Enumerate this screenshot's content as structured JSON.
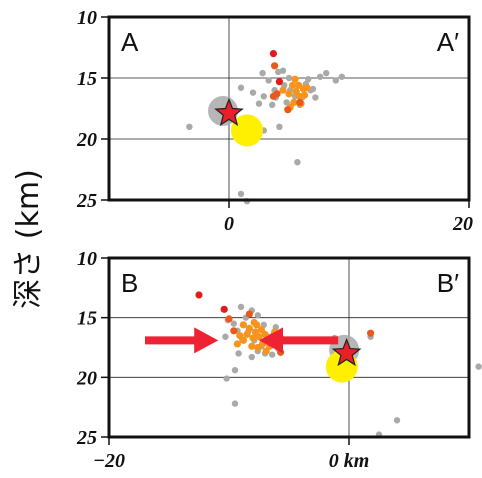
{
  "ylabel": "深さ (km)",
  "colors": {
    "grey": "#a9a9a9",
    "orange": "#f7941d",
    "dark_orange": "#e8591a",
    "red": "#e21b1b",
    "yellow": "#ffef00",
    "star": "#e8202a",
    "arrow": "#ee2233"
  },
  "chart_data": [
    {
      "type": "scatter",
      "panel": "A",
      "left_label": "A",
      "right_label": "A′",
      "xlim": [
        -10,
        20
      ],
      "ylim": [
        25,
        10
      ],
      "x_ticks": [
        0,
        20
      ],
      "x_tick_labels": [
        "0",
        "20"
      ],
      "y_ticks": [
        10,
        15,
        20,
        25
      ],
      "y_tick_labels": [
        "10",
        "15",
        "20",
        "25"
      ],
      "grid": true,
      "series": [
        {
          "color": "grey",
          "points": [
            [
              1,
              15.8
            ],
            [
              2,
              16.2
            ],
            [
              2.5,
              17.1
            ],
            [
              2.9,
              16.5
            ],
            [
              3.3,
              15.2
            ],
            [
              3.6,
              17.2
            ],
            [
              3.9,
              16.6
            ],
            [
              4.1,
              14.5
            ],
            [
              4.5,
              14.4
            ],
            [
              4.6,
              15.6
            ],
            [
              5.0,
              15.0
            ],
            [
              5.1,
              16.0
            ],
            [
              5.5,
              16.5
            ],
            [
              5.9,
              17.2
            ],
            [
              6.1,
              16.6
            ],
            [
              6.4,
              15.5
            ],
            [
              6.8,
              16.0
            ],
            [
              7.2,
              16.6
            ],
            [
              7.6,
              14.9
            ],
            [
              8.1,
              14.6
            ],
            [
              8.9,
              15.2
            ],
            [
              9.4,
              14.9
            ],
            [
              4.2,
              19.0
            ],
            [
              2.9,
              19.3
            ],
            [
              5.7,
              21.9
            ],
            [
              3.8,
              16.0
            ],
            [
              6.6,
              15.1
            ],
            [
              7.0,
              15.9
            ],
            [
              -3.3,
              19.0
            ],
            [
              1.0,
              24.5
            ],
            [
              1.5,
              25.1
            ],
            [
              2.8,
              14.6
            ],
            [
              4.8,
              17.0
            ]
          ]
        },
        {
          "color": "orange",
          "points": [
            [
              5.0,
              16.3
            ],
            [
              5.3,
              15.6
            ],
            [
              5.6,
              16.1
            ],
            [
              5.9,
              16.5
            ],
            [
              5.4,
              17.0
            ],
            [
              6.2,
              15.9
            ],
            [
              5.8,
              15.6
            ],
            [
              6.3,
              16.4
            ],
            [
              5.1,
              17.4
            ],
            [
              6.0,
              17.1
            ],
            [
              4.5,
              16.0
            ],
            [
              5.5,
              15.1
            ],
            [
              6.5,
              15.8
            ]
          ]
        },
        {
          "color": "dark_orange",
          "points": [
            [
              5.9,
              17.0
            ],
            [
              4.0,
              16.3
            ],
            [
              3.7,
              16.5
            ],
            [
              4.9,
              17.6
            ],
            [
              3.8,
              14.0
            ]
          ]
        },
        {
          "color": "red",
          "points": [
            [
              3.7,
              13.0
            ],
            [
              4.2,
              15.3
            ]
          ]
        }
      ],
      "large_circles": [
        {
          "color": "grey",
          "x": -0.5,
          "y": 17.7
        },
        {
          "color": "yellow",
          "x": 1.5,
          "y": 19.3
        }
      ],
      "star": {
        "x": 0,
        "y": 17.9
      }
    },
    {
      "type": "scatter",
      "panel": "B",
      "left_label": "B",
      "right_label": "B′",
      "xlim": [
        -20,
        10
      ],
      "ylim": [
        25,
        10
      ],
      "x_ticks": [
        -20,
        0
      ],
      "x_tick_labels": [
        "−20",
        "0 km"
      ],
      "y_ticks": [
        10,
        15,
        20,
        25
      ],
      "y_tick_labels": [
        "10",
        "15",
        "20",
        "25"
      ],
      "grid": true,
      "series": [
        {
          "color": "grey",
          "points": [
            [
              -9.0,
              14.1
            ],
            [
              -8.6,
              15.0
            ],
            [
              -8.1,
              14.4
            ],
            [
              -7.6,
              14.8
            ],
            [
              -9.3,
              16.1
            ],
            [
              -8.9,
              16.8
            ],
            [
              -8.4,
              16.2
            ],
            [
              -7.9,
              16.9
            ],
            [
              -7.3,
              17.4
            ],
            [
              -6.8,
              16.6
            ],
            [
              -6.3,
              17.1
            ],
            [
              -5.9,
              17.6
            ],
            [
              -6.4,
              18.1
            ],
            [
              -5.8,
              16.3
            ],
            [
              -7.0,
              18.0
            ],
            [
              -9.6,
              15.5
            ],
            [
              -10.1,
              15.2
            ],
            [
              -10.3,
              16.6
            ],
            [
              -8.1,
              18.3
            ],
            [
              -7.6,
              17.8
            ],
            [
              -9.2,
              18.0
            ],
            [
              -6.1,
              15.8
            ],
            [
              -5.0,
              16.9
            ],
            [
              -9.5,
              19.4
            ],
            [
              1.8,
              16.6
            ],
            [
              10.8,
              19.1
            ],
            [
              -10.2,
              20.1
            ],
            [
              -9.5,
              22.2
            ],
            [
              4.0,
              23.6
            ],
            [
              2.5,
              24.8
            ],
            [
              -1.2,
              16.7
            ],
            [
              -7.1,
              15.6
            ]
          ]
        },
        {
          "color": "orange",
          "points": [
            [
              -8.8,
              15.6
            ],
            [
              -8.3,
              15.9
            ],
            [
              -7.8,
              16.2
            ],
            [
              -7.3,
              16.0
            ],
            [
              -8.0,
              16.7
            ],
            [
              -7.5,
              16.6
            ],
            [
              -6.8,
              16.9
            ],
            [
              -6.3,
              16.5
            ],
            [
              -8.8,
              16.9
            ],
            [
              -7.2,
              17.2
            ],
            [
              -6.6,
              17.4
            ],
            [
              -9.3,
              17.2
            ],
            [
              -7.9,
              15.4
            ],
            [
              -8.5,
              16.4
            ],
            [
              -6.0,
              17.0
            ],
            [
              -5.6,
              16.8
            ],
            [
              -7.0,
              16.4
            ],
            [
              -5.8,
              17.5
            ],
            [
              -6.9,
              17.8
            ],
            [
              -8.1,
              17.4
            ],
            [
              -9.1,
              16.5
            ],
            [
              -7.6,
              17.5
            ],
            [
              -6.2,
              16.2
            ],
            [
              -7.7,
              15.6
            ]
          ]
        },
        {
          "color": "dark_orange",
          "points": [
            [
              -10.0,
              15.1
            ],
            [
              -5.7,
              17.9
            ],
            [
              1.8,
              16.3
            ],
            [
              -9.6,
              16.1
            ],
            [
              -8.3,
              14.7
            ]
          ]
        },
        {
          "color": "red",
          "points": [
            [
              -12.5,
              13.1
            ],
            [
              -10.4,
              14.3
            ]
          ]
        }
      ],
      "large_circles": [
        {
          "color": "grey",
          "x": -0.4,
          "y": 17.7
        },
        {
          "color": "yellow",
          "x": -0.6,
          "y": 19.1
        }
      ],
      "star": {
        "x": -0.2,
        "y": 18.0
      },
      "arrows": [
        {
          "from": [
            -17,
            16.9
          ],
          "to": [
            -10.9,
            16.9
          ]
        },
        {
          "from": [
            -0.9,
            16.9
          ],
          "to": [
            -7.5,
            16.9
          ]
        }
      ]
    }
  ]
}
